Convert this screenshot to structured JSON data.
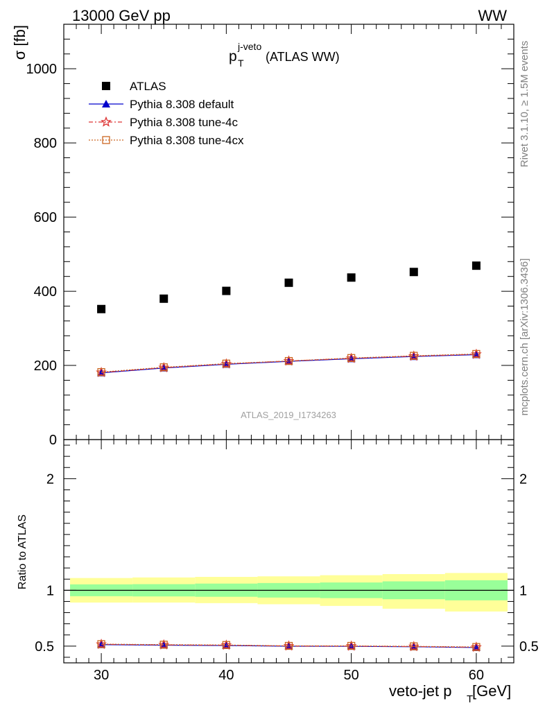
{
  "header": {
    "left": "13000 GeV pp",
    "right": "WW"
  },
  "plot_title": {
    "main": "p",
    "sup": "j-veto",
    "sub": "T",
    "rest": " (ATLAS WW)"
  },
  "watermark": "ATLAS_2019_I1734263",
  "side_text": {
    "rivet": "Rivet 3.1.10, ≥ 1.5M events",
    "mcplots": "mcplots.cern.ch [arXiv:1306.3436]"
  },
  "legend": [
    {
      "label": "ATLAS",
      "marker": "square",
      "color": "#000000"
    },
    {
      "label": "Pythia 8.308 default",
      "marker": "triangle",
      "color": "#0000cc"
    },
    {
      "label": "Pythia 8.308 tune-4c",
      "marker": "star",
      "color": "#dd3333"
    },
    {
      "label": "Pythia 8.308 tune-4cx",
      "marker": "open-square",
      "color": "#cc6622"
    }
  ],
  "colors": {
    "band_inner": "#99ff99",
    "band_outer": "#ffff99"
  },
  "chart_data": [
    {
      "type": "scatter",
      "title": "",
      "ylabel_main": "σ [fb]",
      "x": [
        30,
        35,
        40,
        45,
        50,
        55,
        60
      ],
      "xlim": [
        27,
        63
      ],
      "ylim": [
        0,
        1120
      ],
      "yticks": [
        0,
        200,
        400,
        600,
        800,
        1000
      ],
      "series": [
        {
          "name": "ATLAS",
          "values": [
            352,
            380,
            401,
            423,
            437,
            452,
            469
          ]
        },
        {
          "name": "Pythia 8.308 default",
          "values": [
            180,
            193,
            203,
            211,
            218,
            224,
            229
          ]
        },
        {
          "name": "Pythia 8.308 tune-4c",
          "values": [
            181,
            194,
            204,
            212,
            219,
            225,
            230
          ]
        },
        {
          "name": "Pythia 8.308 tune-4cx",
          "values": [
            182,
            195,
            205,
            212,
            220,
            226,
            231
          ]
        }
      ]
    },
    {
      "type": "line",
      "title": "",
      "ylabel_ratio": "Ratio to ATLAS",
      "x": [
        30,
        35,
        40,
        45,
        50,
        55,
        60
      ],
      "x_bin_edges": [
        27.5,
        32.5,
        37.5,
        42.5,
        47.5,
        52.5,
        57.5,
        62.5
      ],
      "xlim": [
        27,
        63
      ],
      "ylim": [
        0.35,
        2.35
      ],
      "yticks": [
        0.5,
        1,
        2
      ],
      "xticks": [
        30,
        40,
        50,
        60
      ],
      "xlabel": {
        "main": "veto-jet p",
        "sub": "T",
        "rest": " [GeV]"
      },
      "band_inner": {
        "low": [
          0.947,
          0.945,
          0.942,
          0.935,
          0.93,
          0.92,
          0.91
        ],
        "high": [
          1.053,
          1.055,
          1.06,
          1.065,
          1.07,
          1.08,
          1.09
        ]
      },
      "band_outer": {
        "low": [
          0.89,
          0.89,
          0.885,
          0.875,
          0.86,
          0.835,
          0.81
        ],
        "high": [
          1.11,
          1.115,
          1.12,
          1.125,
          1.135,
          1.145,
          1.155
        ]
      },
      "series": [
        {
          "name": "Pythia 8.308 default",
          "values": [
            0.513,
            0.508,
            0.505,
            0.499,
            0.498,
            0.494,
            0.487
          ]
        },
        {
          "name": "Pythia 8.308 tune-4c",
          "values": [
            0.516,
            0.511,
            0.508,
            0.501,
            0.5,
            0.496,
            0.49
          ]
        },
        {
          "name": "Pythia 8.308 tune-4cx",
          "values": [
            0.518,
            0.513,
            0.51,
            0.502,
            0.502,
            0.498,
            0.492
          ]
        }
      ]
    }
  ]
}
